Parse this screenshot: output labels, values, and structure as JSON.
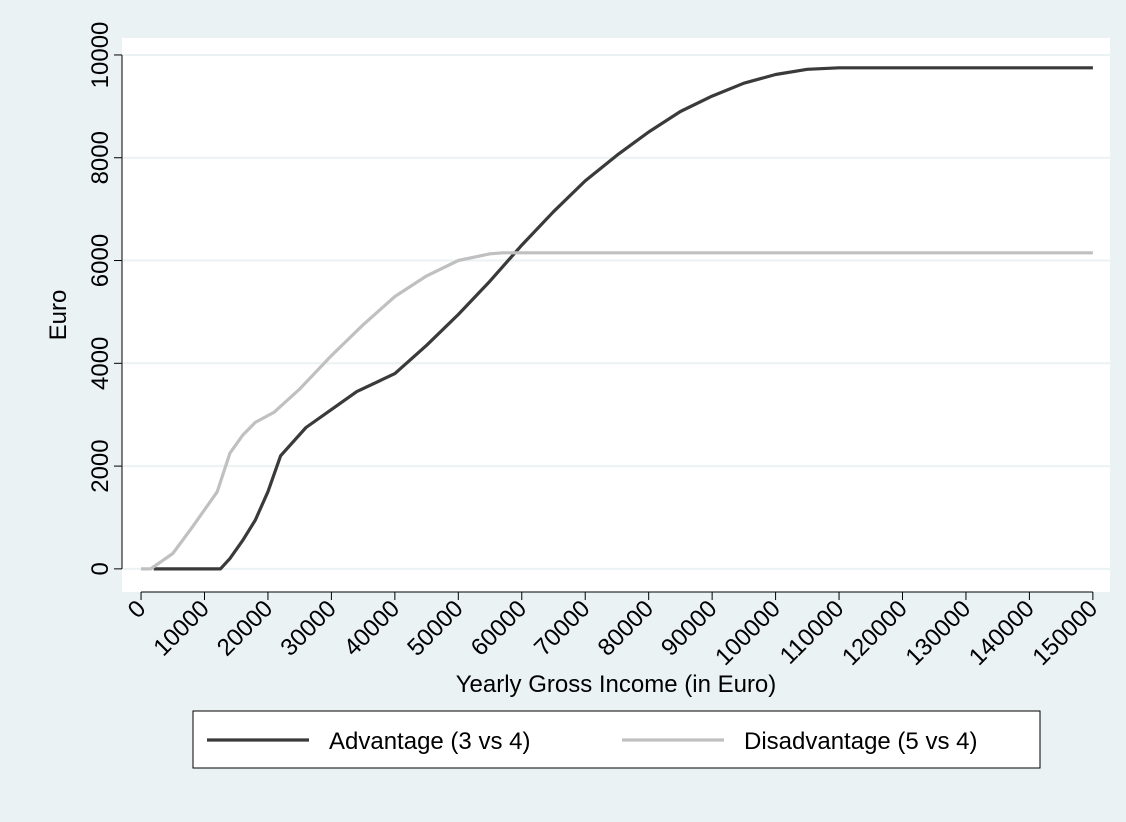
{
  "chart_data": {
    "type": "line",
    "xlabel": "Yearly Gross Income (in Euro)",
    "ylabel": "Euro",
    "xlim": [
      -3000,
      152700
    ],
    "ylim": [
      -450,
      10330
    ],
    "xticks": [
      0,
      10000,
      20000,
      30000,
      40000,
      50000,
      60000,
      70000,
      80000,
      90000,
      100000,
      110000,
      120000,
      130000,
      140000,
      150000
    ],
    "yticks": [
      0,
      2000,
      4000,
      6000,
      8000,
      10000
    ],
    "grid": true,
    "legend": "bottom",
    "series": [
      {
        "name": "Advantage (3 vs 4)",
        "color": "#3a3a3a",
        "x": [
          2000,
          12500,
          14000,
          16000,
          18000,
          20000,
          22000,
          26000,
          30000,
          34000,
          40000,
          45000,
          50000,
          55000,
          60000,
          65000,
          70000,
          75000,
          80000,
          85000,
          90000,
          95000,
          100000,
          105000,
          110000,
          150000
        ],
        "values": [
          0,
          0,
          200,
          550,
          950,
          1500,
          2200,
          2750,
          3100,
          3450,
          3800,
          4350,
          4950,
          5600,
          6300,
          6950,
          7550,
          8050,
          8500,
          8900,
          9200,
          9450,
          9620,
          9720,
          9750,
          9750
        ]
      },
      {
        "name": "Disadvantage (5 vs 4)",
        "color": "#c0c0c0",
        "x": [
          0,
          1500,
          5000,
          8000,
          12000,
          14000,
          16000,
          18000,
          21000,
          25000,
          30000,
          35000,
          40000,
          45000,
          50000,
          55000,
          57000,
          150000
        ],
        "values": [
          0,
          0,
          300,
          800,
          1500,
          2250,
          2600,
          2850,
          3050,
          3500,
          4150,
          4750,
          5300,
          5700,
          6000,
          6130,
          6150,
          6150
        ]
      }
    ]
  }
}
